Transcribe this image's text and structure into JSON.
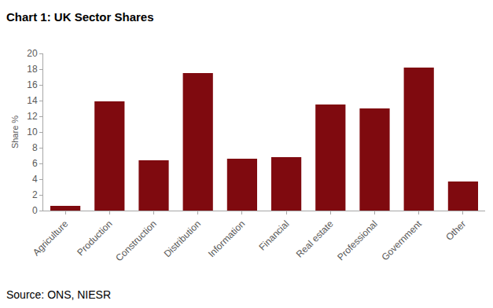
{
  "chart_data": {
    "type": "bar",
    "title": "Chart 1: UK Sector Shares",
    "y_label": "Share %",
    "annotations": [
      "Source: ONS, NIESR"
    ],
    "categories": [
      "Agriculture",
      "Production",
      "Construction",
      "Distribution",
      "Information",
      "Financial",
      "Real estate",
      "Professional",
      "Government",
      "Other"
    ],
    "values": [
      0.6,
      13.9,
      6.4,
      17.5,
      6.6,
      6.8,
      13.5,
      13.0,
      18.2,
      3.7
    ],
    "color": "#7F0A0F",
    "ylim": [
      0,
      20
    ],
    "yticks": [
      0,
      2,
      4,
      6,
      8,
      10,
      12,
      14,
      16,
      18,
      20
    ],
    "grid": false
  }
}
